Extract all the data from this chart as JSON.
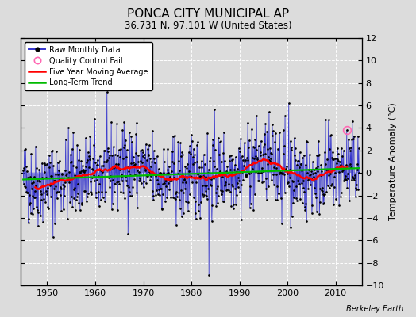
{
  "title": "PONCA CITY MUNICIPAL AP",
  "subtitle": "36.731 N, 97.101 W (United States)",
  "ylabel": "Temperature Anomaly (°C)",
  "watermark": "Berkeley Earth",
  "xlim": [
    1944.5,
    2015.5
  ],
  "ylim": [
    -10,
    12
  ],
  "yticks": [
    -10,
    -8,
    -6,
    -4,
    -2,
    0,
    2,
    4,
    6,
    8,
    10,
    12
  ],
  "xticks": [
    1950,
    1960,
    1970,
    1980,
    1990,
    2000,
    2010
  ],
  "bg_color": "#dcdcdc",
  "plot_bg": "#dcdcdc",
  "grid_color": "white",
  "line_color": "#3333cc",
  "ma_color": "red",
  "trend_color": "#00bb00",
  "qc_color": "#ff69b4",
  "start_year": 1945,
  "end_year": 2014,
  "seed": 42,
  "title_fontsize": 11,
  "subtitle_fontsize": 8.5,
  "tick_labelsize": 8,
  "legend_fontsize": 7,
  "ylabel_fontsize": 8
}
